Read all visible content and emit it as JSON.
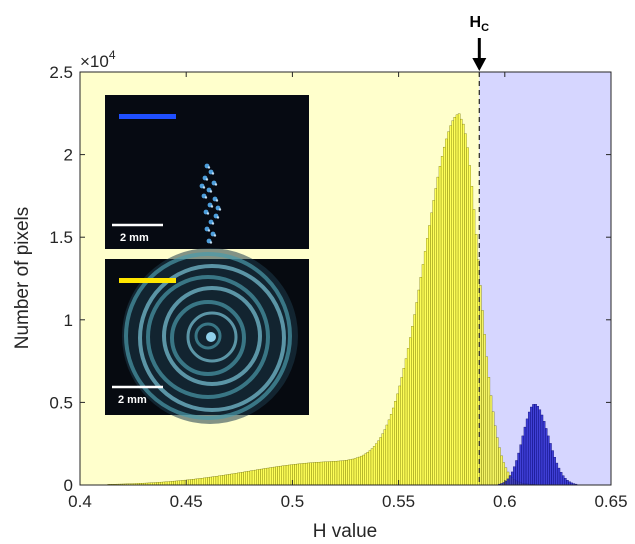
{
  "chart_data": {
    "type": "bar",
    "xlabel": "H value",
    "ylabel": "Number of pixels",
    "exponent_label": "×10",
    "exponent_power": "4",
    "xlim": [
      0.4,
      0.65
    ],
    "ylim": [
      0,
      25000
    ],
    "xticks": [
      0.4,
      0.45,
      0.5,
      0.55,
      0.6,
      0.65
    ],
    "xtick_labels": [
      "0.4",
      "0.45",
      "0.5",
      "0.55",
      "0.6",
      "0.65"
    ],
    "yticks": [
      0,
      5000,
      10000,
      15000,
      20000,
      25000
    ],
    "ytick_labels": [
      "0",
      "0.5",
      "1",
      "1.5",
      "2",
      "2.5"
    ],
    "grid": false,
    "threshold": {
      "label_main": "H",
      "label_sub": "C",
      "value": 0.588
    },
    "regions": [
      {
        "from": 0.4,
        "to": 0.588,
        "color": "#ffffcc"
      },
      {
        "from": 0.588,
        "to": 0.65,
        "color": "#d6d6ff"
      }
    ],
    "series": [
      {
        "color": "#ffff33",
        "peak_x": 0.579,
        "peak_y": 22000,
        "sigma_left": 0.0165,
        "sigma_right": 0.0086,
        "tail_amp": 1400,
        "tail_center": 0.52,
        "tail_sigma": 0.04
      },
      {
        "color": "#1a1acc",
        "peak_x": 0.614,
        "peak_y": 4900,
        "sigma_left": 0.0055,
        "sigma_right": 0.0065
      }
    ],
    "bin_width": 0.001,
    "insets": [
      {
        "bar_color": "#1f4fff",
        "scale_label": "2 mm"
      },
      {
        "bar_color": "#ffe600",
        "scale_label": "2 mm"
      }
    ]
  }
}
